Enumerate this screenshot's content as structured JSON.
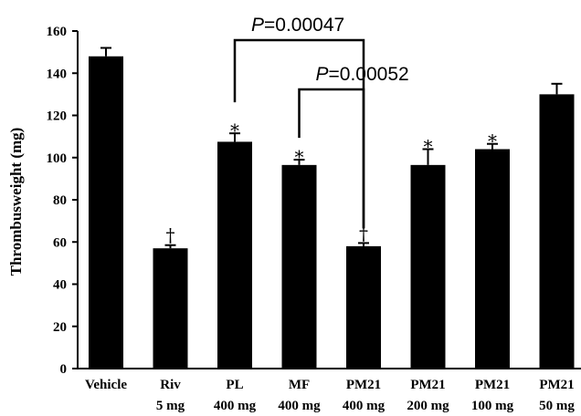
{
  "chart_data": {
    "type": "bar",
    "ylabel": "Thrombusweight (mg)",
    "ylim": [
      0,
      160
    ],
    "yticks": [
      "0",
      "20",
      "40",
      "60",
      "80",
      "100",
      "120",
      "140",
      "160"
    ],
    "bar_color": "#000000",
    "categories": [
      {
        "line1": "Vehicle",
        "line2": ""
      },
      {
        "line1": "Riv",
        "line2": "5 mg"
      },
      {
        "line1": "PL",
        "line2": "400 mg"
      },
      {
        "line1": "MF",
        "line2": "400 mg"
      },
      {
        "line1": "PM21",
        "line2": "400 mg"
      },
      {
        "line1": "PM21",
        "line2": "200 mg"
      },
      {
        "line1": "PM21",
        "line2": "100 mg"
      },
      {
        "line1": "PM21",
        "line2": "50 mg"
      }
    ],
    "values": [
      148,
      57,
      107.5,
      96.5,
      58,
      96.5,
      104,
      130
    ],
    "errors": [
      4,
      1.5,
      4,
      2.5,
      1.5,
      7.5,
      2.5,
      5
    ],
    "markers": [
      "",
      "†",
      "*",
      "*",
      "†",
      "*",
      "*",
      ""
    ],
    "annotations": [
      {
        "p_label": "P",
        "p_value": "=0.00047",
        "from": 2,
        "to": 4
      },
      {
        "p_label": "P",
        "p_value": "=0.00052",
        "from": 3,
        "to": 4
      }
    ]
  }
}
